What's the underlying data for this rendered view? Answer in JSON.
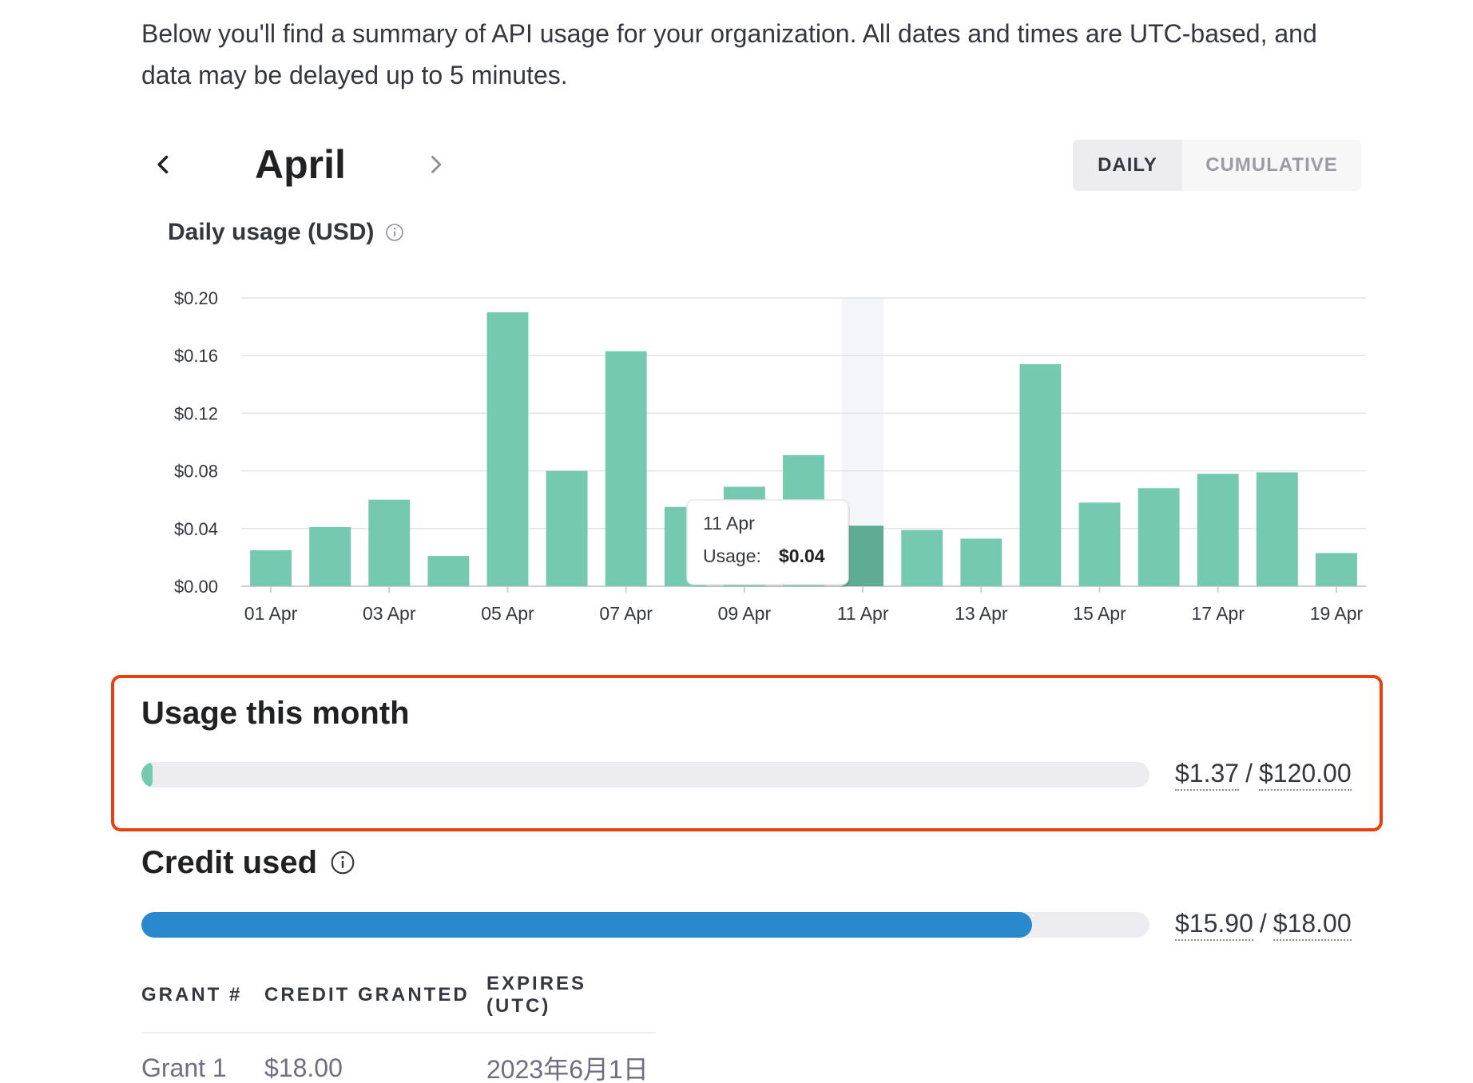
{
  "intro": "Below you'll find a summary of API usage for your organization. All dates and times are UTC-based, and data may be delayed up to 5 minutes.",
  "month_nav": {
    "title": "April"
  },
  "view_toggle": {
    "daily": "DAILY",
    "cumulative": "CUMULATIVE",
    "selected": "daily"
  },
  "chart_title": "Daily usage (USD)",
  "chart_data": {
    "type": "bar",
    "title": "Daily usage (USD)",
    "xlabel": "",
    "ylabel": "",
    "ylim": [
      0,
      0.2
    ],
    "y_ticks": [
      "$0.00",
      "$0.04",
      "$0.08",
      "$0.12",
      "$0.16",
      "$0.20"
    ],
    "y_tick_values": [
      0,
      0.04,
      0.08,
      0.12,
      0.16,
      0.2
    ],
    "categories": [
      "01 Apr",
      "02 Apr",
      "03 Apr",
      "04 Apr",
      "05 Apr",
      "06 Apr",
      "07 Apr",
      "08 Apr",
      "09 Apr",
      "10 Apr",
      "11 Apr",
      "12 Apr",
      "13 Apr",
      "14 Apr",
      "15 Apr",
      "16 Apr",
      "17 Apr",
      "18 Apr",
      "19 Apr"
    ],
    "x_tick_labels": [
      "01 Apr",
      "03 Apr",
      "05 Apr",
      "07 Apr",
      "09 Apr",
      "11 Apr",
      "13 Apr",
      "15 Apr",
      "17 Apr",
      "19 Apr"
    ],
    "values": [
      0.025,
      0.041,
      0.06,
      0.021,
      0.19,
      0.08,
      0.163,
      0.055,
      0.069,
      0.091,
      0.042,
      0.039,
      0.033,
      0.154,
      0.058,
      0.068,
      0.078,
      0.079,
      0.023
    ],
    "grid": true,
    "bar_color": "#74c9b0",
    "highlight_color": "#5fab94",
    "hovered_index": 10,
    "tooltip": {
      "date": "11 Apr",
      "label": "Usage:",
      "value": "$0.04"
    }
  },
  "usage": {
    "title": "Usage this month",
    "used": "$1.37",
    "limit": "$120.00",
    "fraction": 0.0114
  },
  "credit": {
    "title": "Credit used",
    "used": "$15.90",
    "total": "$18.00",
    "fraction": 0.8833
  },
  "grants": {
    "headers": [
      "GRANT #",
      "CREDIT GRANTED",
      "EXPIRES (UTC)"
    ],
    "rows": [
      [
        "Grant 1",
        "$18.00",
        "2023年6月1日"
      ]
    ]
  },
  "colors": {
    "accent_green": "#74c9b0",
    "credit_blue": "#2a88cc",
    "highlight_border": "#e8400f"
  }
}
